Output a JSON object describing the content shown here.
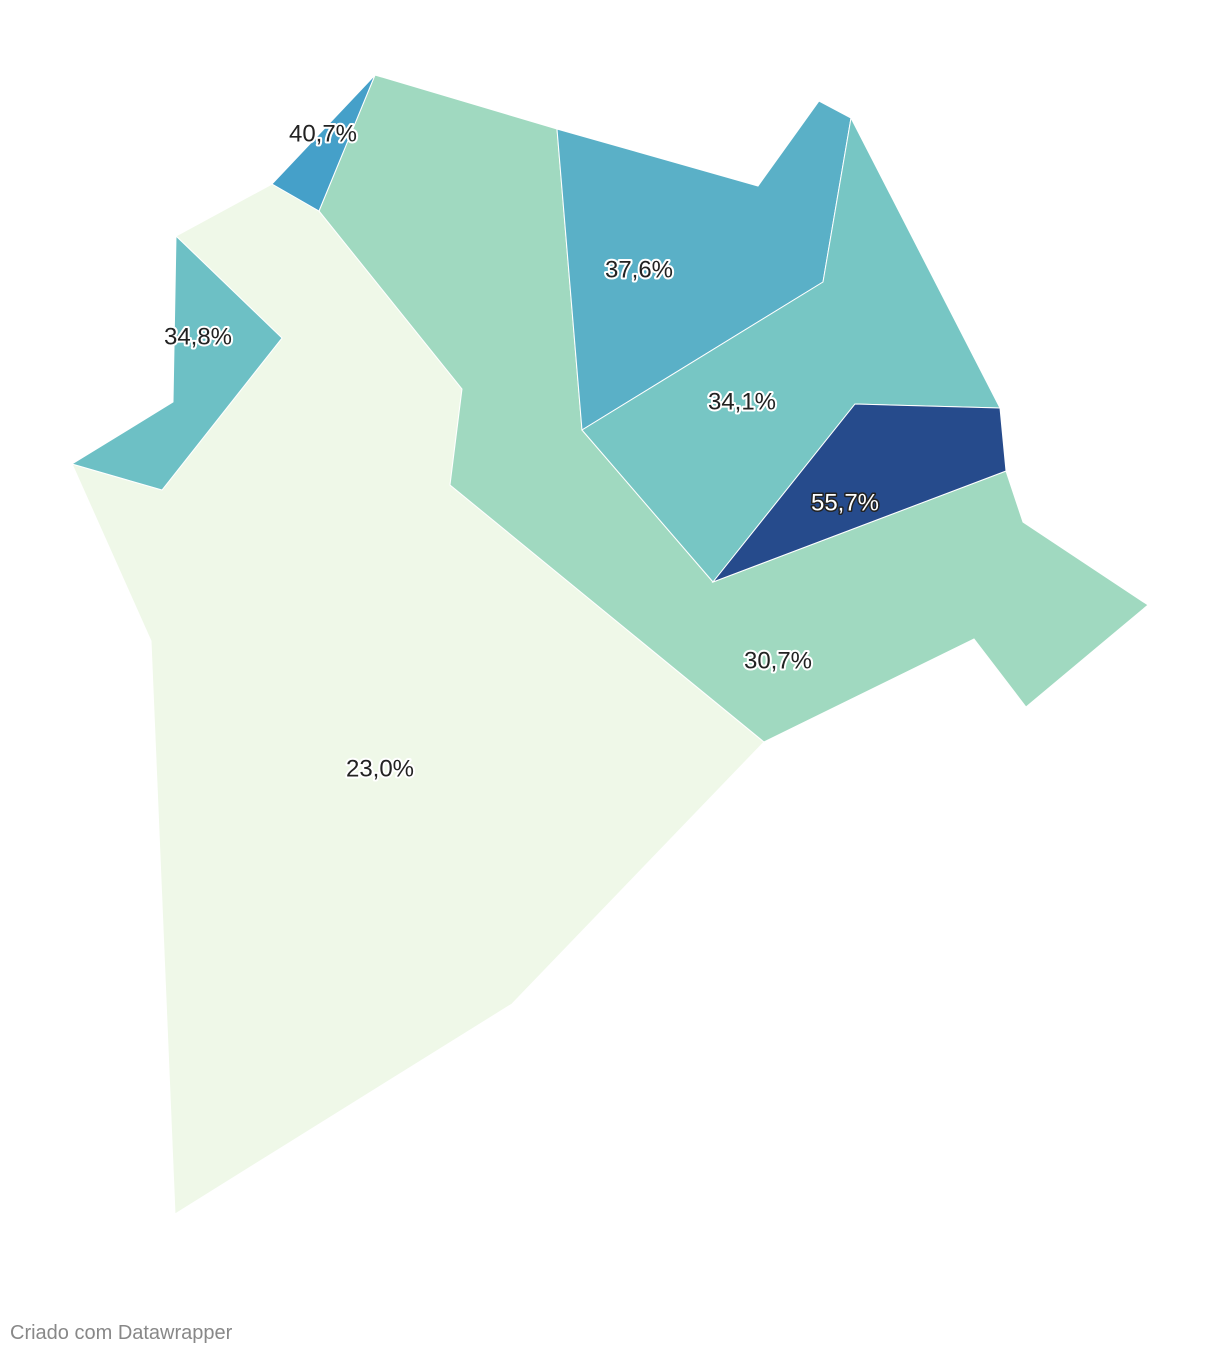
{
  "chart_data": {
    "type": "map",
    "values": [
      40.7,
      34.8,
      37.6,
      34.1,
      55.7,
      30.7,
      23.0
    ],
    "value_labels": [
      "40,7%",
      "34,8%",
      "37,6%",
      "34,1%",
      "55,7%",
      "30,7%",
      "23,0%"
    ],
    "colors": [
      "#45a0c9",
      "#6dc0c5",
      "#5ab0c7",
      "#77c6c4",
      "#264b8c",
      "#a0d9c0",
      "#eff8e8"
    ]
  },
  "credit": "Criado com Datawrapper"
}
